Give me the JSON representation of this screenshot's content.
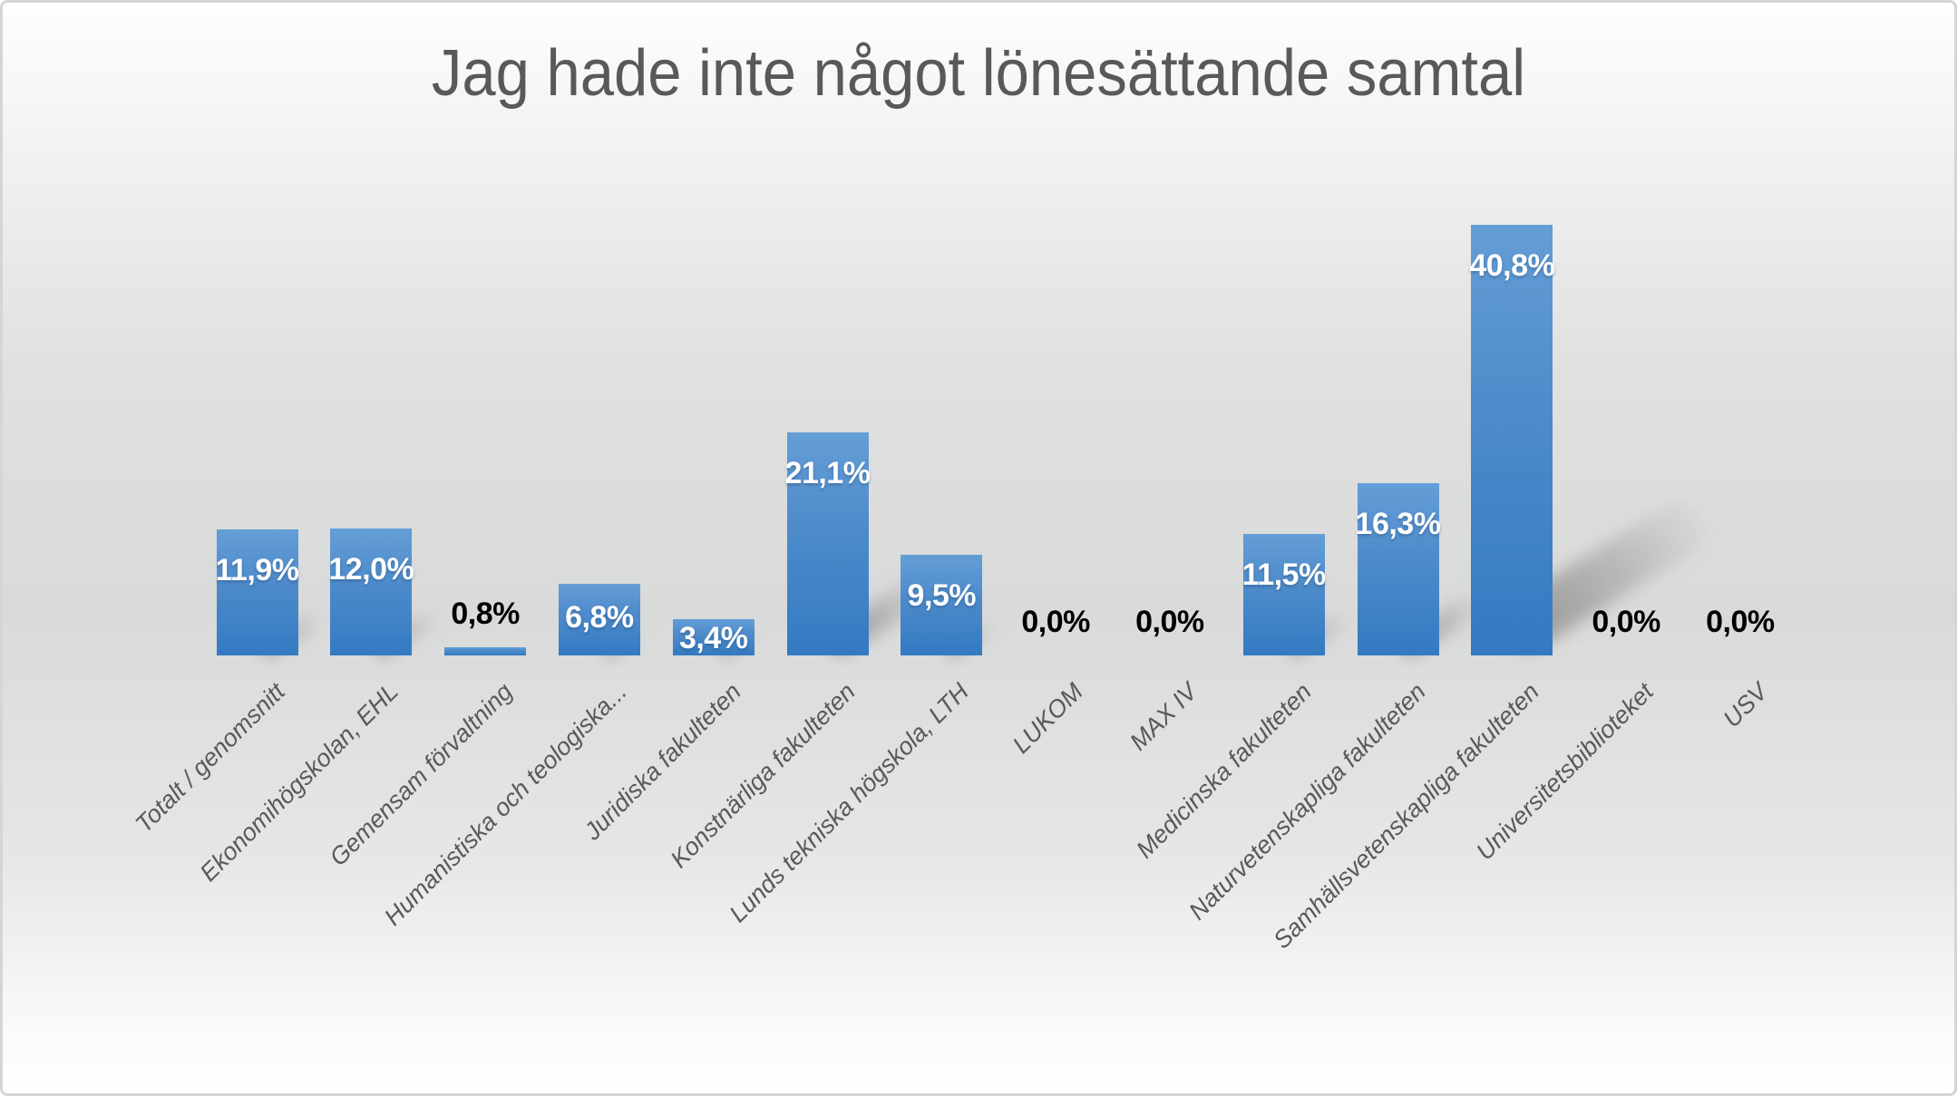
{
  "chart_data": {
    "type": "bar",
    "title": "Jag hade inte något lönesättande samtal",
    "categories": [
      "Totalt / genomsnitt",
      "Ekonomihögskolan, EHL",
      "Gemensam förvaltning",
      "Humanistiska och teologiska...",
      "Juridiska fakulteten",
      "Konstnärliga fakulteten",
      "Lunds tekniska högskola, LTH",
      "LUKOM",
      "MAX IV",
      "Medicinska fakulteten",
      "Naturvetenskapliga fakulteten",
      "Samhällsvetenskapliga fakulteten",
      "Universitetsbiblioteket",
      "USV"
    ],
    "values": [
      11.9,
      12.0,
      0.8,
      6.8,
      3.4,
      21.1,
      9.5,
      0.0,
      0.0,
      11.5,
      16.3,
      40.8,
      0.0,
      0.0
    ],
    "value_labels": [
      "11,9%",
      "12,0%",
      "0,8%",
      "6,8%",
      "3,4%",
      "21,1%",
      "9,5%",
      "0,0%",
      "0,0%",
      "11,5%",
      "16,3%",
      "40,8%",
      "0,0%",
      "0,0%"
    ],
    "xlabel": "",
    "ylabel": "",
    "ylim": [
      0,
      45
    ],
    "grid": false,
    "legend": "none",
    "axis_labels_rotation_deg": -45,
    "colors": {
      "bar_top": "#649ED7",
      "bar_bottom": "#337AC2",
      "title_text": "#595959",
      "axis_text": "#595959",
      "label_inside": "#FFFFFF",
      "label_outside": "#000000"
    }
  }
}
